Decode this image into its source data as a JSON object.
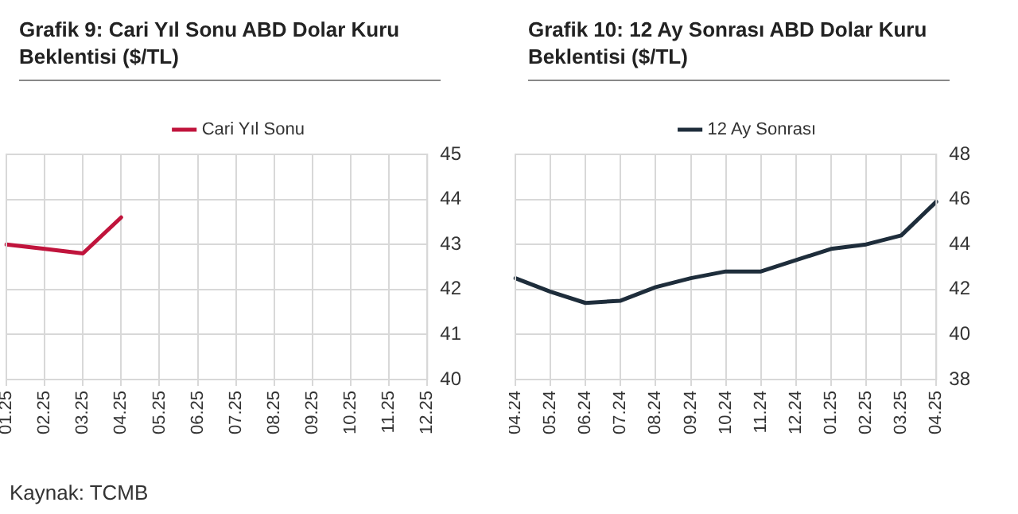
{
  "chart_data": [
    {
      "type": "line",
      "title": "Grafik 9: Cari Yıl Sonu ABD Dolar Kuru Beklentisi ($/TL)",
      "categories": [
        "01.25",
        "02.25",
        "03.25",
        "04.25",
        "05.25",
        "06.25",
        "07.25",
        "08.25",
        "09.25",
        "10.25",
        "11.25",
        "12.25"
      ],
      "series": [
        {
          "name": "Cari Yıl Sonu",
          "color": "#c0143c",
          "values": [
            43.0,
            42.9,
            42.8,
            43.6,
            null,
            null,
            null,
            null,
            null,
            null,
            null,
            null
          ]
        }
      ],
      "ylim": [
        40,
        45
      ],
      "yticks": [
        40,
        41,
        42,
        43,
        44,
        45
      ],
      "grid": true,
      "legend": "top",
      "marker": "none",
      "line_style": "solid",
      "annotations": [
        "Kaynak: TCMB"
      ]
    },
    {
      "type": "line",
      "title": "Grafik 10: 12 Ay Sonrası ABD Dolar Kuru Beklentisi ($/TL)",
      "categories": [
        "04.24",
        "05.24",
        "06.24",
        "07.24",
        "08.24",
        "09.24",
        "10.24",
        "11.24",
        "12.24",
        "01.25",
        "02.25",
        "03.25",
        "04.25"
      ],
      "series": [
        {
          "name": "12 Ay Sonrası",
          "color": "#1e2d3b",
          "values": [
            42.5,
            41.9,
            41.4,
            41.5,
            42.1,
            42.5,
            42.8,
            42.8,
            43.3,
            43.8,
            44.0,
            44.4,
            45.9
          ]
        }
      ],
      "ylim": [
        38,
        48
      ],
      "yticks": [
        38,
        40,
        42,
        44,
        46,
        48
      ],
      "grid": true,
      "legend": "top",
      "marker": "none",
      "line_style": "solid"
    }
  ]
}
